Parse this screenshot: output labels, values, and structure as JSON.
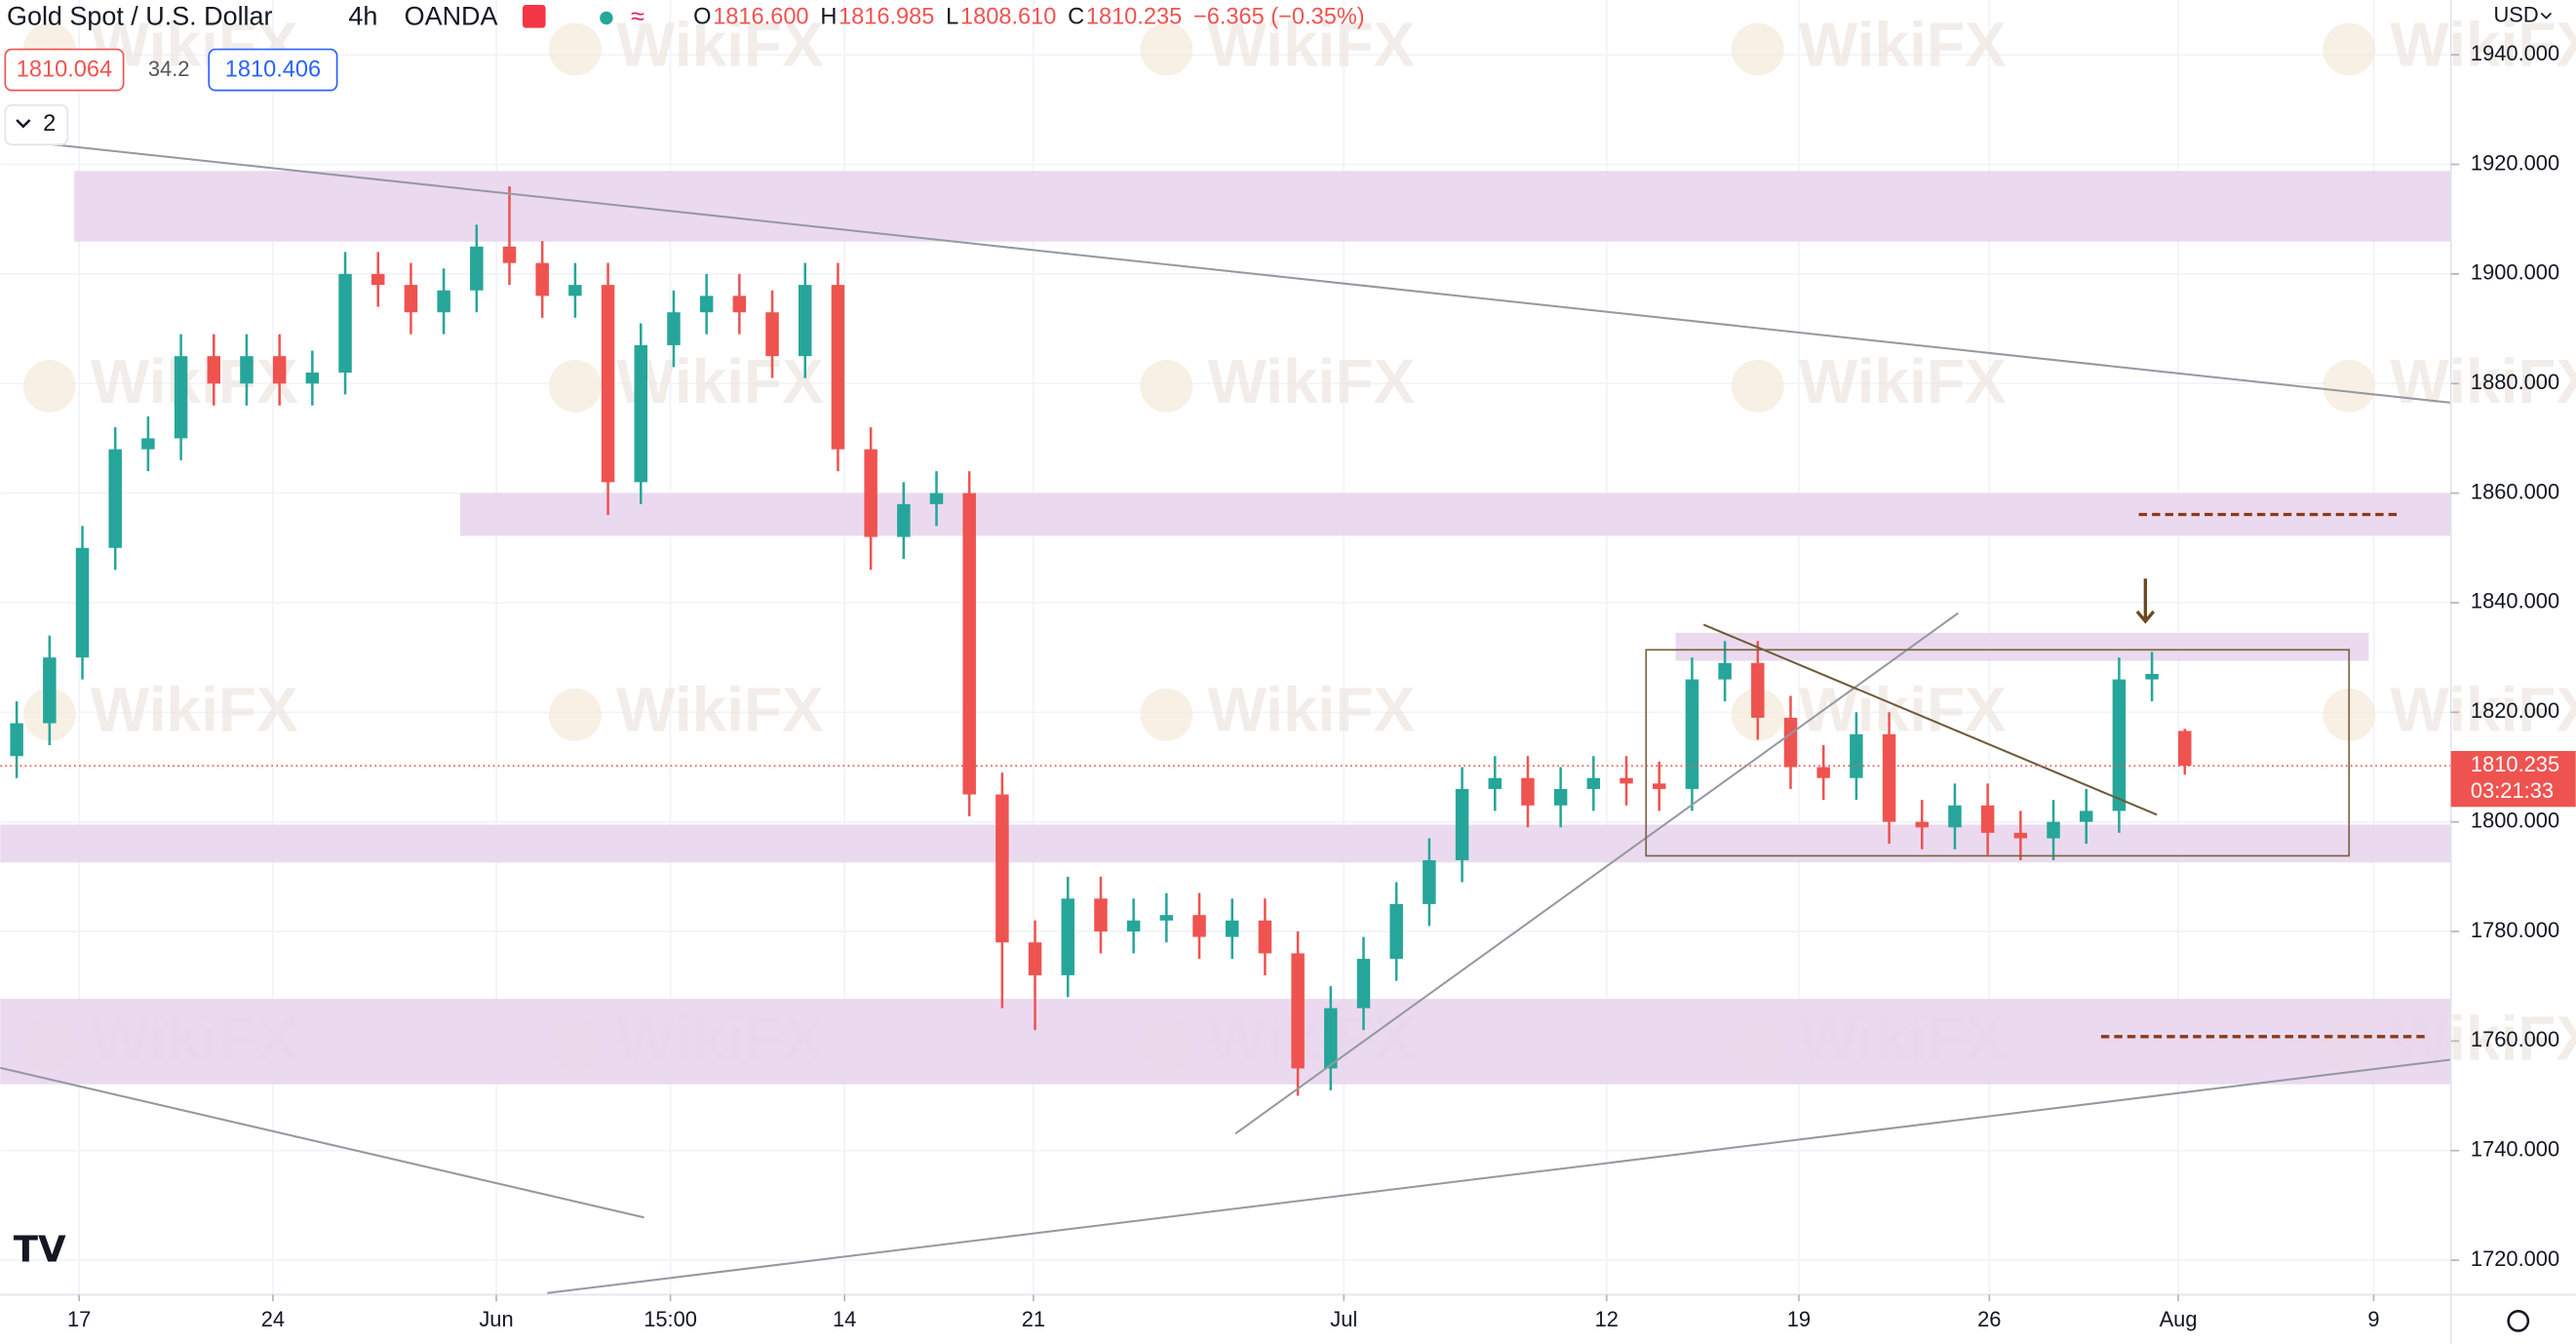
{
  "chart_data": {
    "type": "candlestick",
    "title": "Gold Spot / U.S. Dollar",
    "interval": "4h",
    "source": "OANDA",
    "ohlc_labels": [
      "O",
      "H",
      "L",
      "C"
    ],
    "ohlc_values": [
      "1816.600",
      "1816.985",
      "1808.610",
      "1810.235"
    ],
    "change": "−6.365 (−0.35%)",
    "bid": "1810.064",
    "spread": "34.2",
    "ask": "1810.406",
    "indicators_count": "2",
    "currency": "USD",
    "last_price": {
      "value": 1810.235,
      "label": "1810.235"
    },
    "countdown": "03:21:33",
    "watermark": "WikiFX",
    "up_color": "#26a69a",
    "down_color": "#ef5350",
    "xlim": [
      0,
      74.6
    ],
    "ylim": [
      1713.7,
      1950
    ],
    "xticks": [
      {
        "value": 2.4,
        "label": "17"
      },
      {
        "value": 8.3,
        "label": "24"
      },
      {
        "value": 15.1,
        "label": "Jun"
      },
      {
        "value": 20.4,
        "label": "15:00"
      },
      {
        "value": 25.7,
        "label": "14"
      },
      {
        "value": 31.45,
        "label": "21"
      },
      {
        "value": 40.9,
        "label": "Jul"
      },
      {
        "value": 48.9,
        "label": "12"
      },
      {
        "value": 54.75,
        "label": "19"
      },
      {
        "value": 60.55,
        "label": "26"
      },
      {
        "value": 66.3,
        "label": "Aug"
      },
      {
        "value": 72.25,
        "label": "9"
      }
    ],
    "yticks": [
      {
        "value": 1720,
        "label": "1720.000"
      },
      {
        "value": 1740,
        "label": "1740.000"
      },
      {
        "value": 1760,
        "label": "1760.000"
      },
      {
        "value": 1780,
        "label": "1780.000"
      },
      {
        "value": 1800,
        "label": "1800.000"
      },
      {
        "value": 1820,
        "label": "1820.000"
      },
      {
        "value": 1840,
        "label": "1840.000"
      },
      {
        "value": 1860,
        "label": "1860.000"
      },
      {
        "value": 1880,
        "label": "1880.000"
      },
      {
        "value": 1900,
        "label": "1900.000"
      },
      {
        "value": 1920,
        "label": "1920.000"
      },
      {
        "value": 1940,
        "label": "1940.000"
      }
    ],
    "grid": true,
    "x": [
      0.5,
      1.5,
      2.5,
      3.5,
      4.5,
      5.5,
      6.5,
      7.5,
      8.5,
      9.5,
      10.5,
      11.5,
      12.5,
      13.5,
      14.5,
      15.5,
      16.5,
      17.5,
      18.5,
      19.5,
      20.5,
      21.5,
      22.5,
      23.5,
      24.5,
      25.5,
      26.5,
      27.5,
      28.5,
      29.5,
      30.5,
      31.5,
      32.5,
      33.5,
      34.5,
      35.5,
      36.5,
      37.5,
      38.5,
      39.5,
      40.5,
      41.5,
      42.5,
      43.5,
      44.5,
      45.5,
      46.5,
      47.5,
      48.5,
      49.5,
      50.5,
      51.5,
      52.5,
      53.5,
      54.5,
      55.5,
      56.5,
      57.5,
      58.5,
      59.5,
      60.5,
      61.5,
      62.5,
      63.5,
      64.5,
      65.5,
      66.5
    ],
    "open": [
      1812,
      1818,
      1830,
      1850,
      1868,
      1870,
      1885,
      1880,
      1885,
      1880,
      1882,
      1900,
      1898,
      1893,
      1897,
      1905,
      1902,
      1896,
      1898,
      1862,
      1887,
      1893,
      1896,
      1893,
      1885,
      1898,
      1868,
      1852,
      1858,
      1860,
      1805,
      1778,
      1772,
      1786,
      1780,
      1782,
      1783,
      1779,
      1782,
      1776,
      1755,
      1766,
      1775,
      1785,
      1793,
      1806,
      1808,
      1803,
      1806,
      1808,
      1807,
      1806,
      1826,
      1829,
      1819,
      1810,
      1808,
      1816,
      1800,
      1799,
      1803,
      1798,
      1797,
      1800,
      1802,
      1826,
      1816.6
    ],
    "high": [
      1822,
      1834,
      1854,
      1872,
      1874,
      1889,
      1889,
      1889,
      1889,
      1886,
      1904,
      1904,
      1902,
      1901,
      1909,
      1916,
      1906,
      1902,
      1902,
      1891,
      1897,
      1900,
      1900,
      1897,
      1902,
      1902,
      1872,
      1862,
      1864,
      1864,
      1809,
      1782,
      1790,
      1790,
      1786,
      1787,
      1787,
      1786,
      1786,
      1780,
      1770,
      1779,
      1789,
      1797,
      1810,
      1812,
      1812,
      1810,
      1812,
      1812,
      1811,
      1830,
      1833,
      1833,
      1823,
      1814,
      1820,
      1820,
      1804,
      1807,
      1807,
      1802,
      1804,
      1806,
      1830,
      1831,
      1816.985
    ],
    "low": [
      1808,
      1814,
      1826,
      1846,
      1864,
      1866,
      1876,
      1876,
      1876,
      1876,
      1878,
      1894,
      1889,
      1889,
      1893,
      1898,
      1892,
      1892,
      1856,
      1858,
      1883,
      1889,
      1889,
      1881,
      1881,
      1864,
      1846,
      1848,
      1854,
      1801,
      1766,
      1762,
      1768,
      1776,
      1776,
      1778,
      1775,
      1775,
      1772,
      1750,
      1751,
      1762,
      1771,
      1781,
      1789,
      1802,
      1799,
      1799,
      1802,
      1803,
      1802,
      1802,
      1822,
      1815,
      1806,
      1804,
      1804,
      1796,
      1795,
      1795,
      1794,
      1793,
      1793,
      1796,
      1798,
      1822,
      1808.61
    ],
    "close": [
      1818,
      1830,
      1850,
      1868,
      1870,
      1885,
      1880,
      1885,
      1880,
      1882,
      1900,
      1898,
      1893,
      1897,
      1905,
      1902,
      1896,
      1898,
      1862,
      1887,
      1893,
      1896,
      1893,
      1885,
      1898,
      1868,
      1852,
      1858,
      1860,
      1805,
      1778,
      1772,
      1786,
      1780,
      1782,
      1783,
      1779,
      1782,
      1776,
      1755,
      1766,
      1775,
      1785,
      1793,
      1806,
      1808,
      1803,
      1806,
      1808,
      1807,
      1806,
      1826,
      1829,
      1819,
      1810,
      1808,
      1816,
      1800,
      1799,
      1803,
      1798,
      1797,
      1800,
      1802,
      1826,
      1827,
      1810.235
    ],
    "zone_color": "#e7d3ec",
    "zones": [
      {
        "x": [
          2.25,
          74.6
        ],
        "y": [
          1905.9,
          1918.8
        ]
      },
      {
        "x": [
          14,
          74.6
        ],
        "y": [
          1852.2,
          1860
        ]
      },
      {
        "x": [
          51,
          72.1
        ],
        "y": [
          1829.4,
          1834.5
        ]
      },
      {
        "x": [
          0,
          74.6
        ],
        "y": [
          1792.6,
          1799.5
        ]
      },
      {
        "x": [
          0,
          74.6
        ],
        "y": [
          1752.1,
          1767.7
        ]
      }
    ],
    "trend_lines": [
      {
        "x": [
          0.25,
          74.6
        ],
        "y": [
          1924.5,
          1876.5
        ]
      },
      {
        "x": [
          0,
          19.6
        ],
        "y": [
          1755.1,
          1727.8
        ]
      },
      {
        "x": [
          16.65,
          74.6
        ],
        "y": [
          1714,
          1756.6
        ]
      },
      {
        "x": [
          37.6,
          59.6
        ],
        "y": [
          1743.1,
          1838.1
        ]
      },
      {
        "x": [
          51.85,
          65.65
        ],
        "y": [
          1836,
          1801.3
        ]
      }
    ],
    "box": {
      "x": [
        50.1,
        71.5
      ],
      "y": [
        1793.8,
        1831.4
      ]
    },
    "target_lines": [
      {
        "x": [
          65.1,
          73.1
        ],
        "y": 1856.1
      },
      {
        "x": [
          63.95,
          73.8
        ],
        "y": 1760.8
      }
    ],
    "arrow": {
      "x": 65.3,
      "y": [
        1844.4,
        1836.6
      ]
    }
  }
}
